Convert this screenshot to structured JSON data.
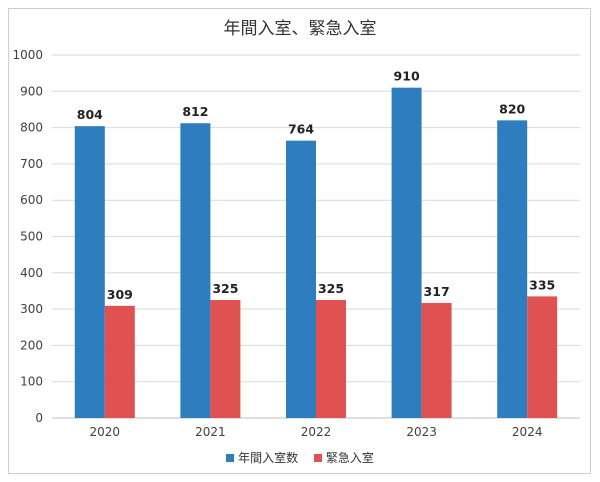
{
  "chart_data": {
    "type": "bar",
    "title": "年間入室、緊急入室",
    "categories": [
      "2020",
      "2021",
      "2022",
      "2023",
      "2024"
    ],
    "series": [
      {
        "name": "年間入室数",
        "values": [
          804,
          812,
          764,
          910,
          820
        ],
        "color": "#2e7ebf"
      },
      {
        "name": "緊急入室",
        "values": [
          309,
          325,
          325,
          317,
          335
        ],
        "color": "#e05252"
      }
    ],
    "ylim": [
      0,
      1000
    ],
    "yticks": [
      0,
      100,
      200,
      300,
      400,
      500,
      600,
      700,
      800,
      900,
      1000
    ],
    "grid": true,
    "legend": "bottom"
  }
}
